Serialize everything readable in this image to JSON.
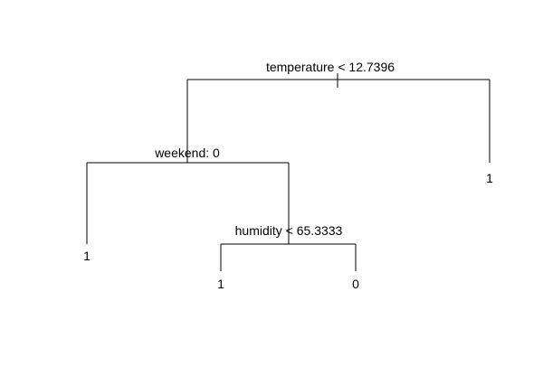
{
  "tree": {
    "root": {
      "split": "temperature < 12.7396",
      "left": {
        "split": "weekend: 0",
        "left": {
          "leaf": "1"
        },
        "right": {
          "split": "humidity < 65.3333",
          "left": {
            "leaf": "1"
          },
          "right": {
            "leaf": "0"
          }
        }
      },
      "right": {
        "leaf": "1"
      }
    }
  },
  "colors": {
    "line": "#000000",
    "text": "#000000",
    "background": "#ffffff"
  }
}
